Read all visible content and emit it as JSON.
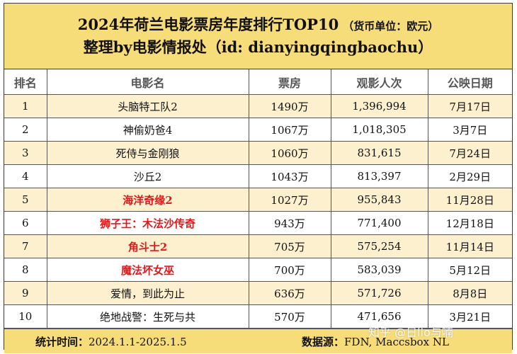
{
  "title": {
    "main": "2024年荷兰电影票房年度排行TOP10",
    "unit": "（货币单位：欧元）",
    "subtitle": "整理by电影情报处（id: dianyingqingbaochu）"
  },
  "table": {
    "headers": [
      "排名",
      "电影名",
      "票房",
      "观影人次",
      "公映日期"
    ],
    "rows": [
      {
        "rank": "1",
        "name": "头脑特工队2",
        "box": "1490万",
        "admissions": "1,396,994",
        "date": "7月17日",
        "highlight": false
      },
      {
        "rank": "2",
        "name": "神偷奶爸4",
        "box": "1067万",
        "admissions": "1,018,305",
        "date": "3月7日",
        "highlight": false
      },
      {
        "rank": "3",
        "name": "死侍与金刚狼",
        "box": "1060万",
        "admissions": "831,615",
        "date": "7月24日",
        "highlight": false
      },
      {
        "rank": "4",
        "name": "沙丘2",
        "box": "1043万",
        "admissions": "813,397",
        "date": "2月29日",
        "highlight": false
      },
      {
        "rank": "5",
        "name": "海洋奇缘2",
        "box": "1027万",
        "admissions": "955,843",
        "date": "11月28日",
        "highlight": true
      },
      {
        "rank": "6",
        "name": "狮子王：木法沙传奇",
        "box": "943万",
        "admissions": "771,400",
        "date": "12月18日",
        "highlight": true
      },
      {
        "rank": "7",
        "name": "角斗士2",
        "box": "705万",
        "admissions": "575,254",
        "date": "11月14日",
        "highlight": true
      },
      {
        "rank": "8",
        "name": "魔法坏女巫",
        "box": "700万",
        "admissions": "583,039",
        "date": "5月12日",
        "highlight": true
      },
      {
        "rank": "9",
        "name": "爱情，到此为止",
        "box": "636万",
        "admissions": "571,726",
        "date": "8月8日",
        "highlight": false
      },
      {
        "rank": "10",
        "name": "绝地战警：生死与共",
        "box": "570万",
        "admissions": "471,656",
        "date": "3月21日",
        "highlight": false
      }
    ]
  },
  "footer": {
    "stat_label": "统计时间：",
    "stat_value": "2024.1.1-2025.1.5",
    "source_label": "数据源：",
    "source_value": "FDN, Maccsbox NL"
  },
  "watermark": "知乎 @日llo与喃",
  "colors": {
    "header_bg": "#f7dc7a",
    "odd_row_bg": "#fdf0cf",
    "highlight_text": "#e0191b"
  }
}
